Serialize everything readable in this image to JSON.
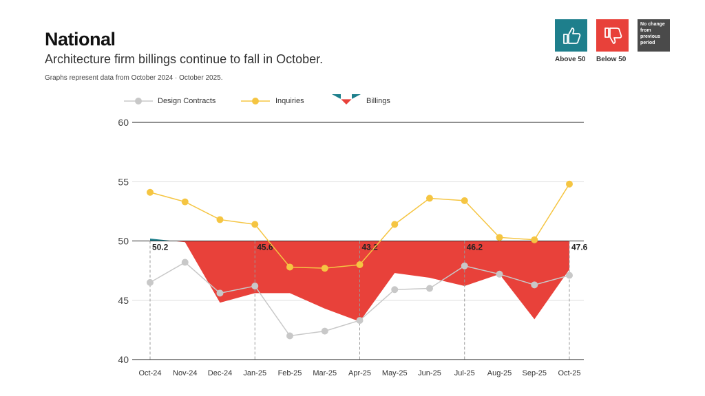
{
  "header": {
    "title": "National",
    "subtitle": "Architecture firm billings continue to fall in October.",
    "note": "Graphs represent data from October 2024 · October 2025."
  },
  "status_key": {
    "above": {
      "label": "Above 50",
      "color": "#1e7f8c",
      "icon": "thumbs-up-icon"
    },
    "below": {
      "label": "Below 50",
      "color": "#e8413a",
      "icon": "thumbs-down-icon"
    },
    "no_change": {
      "label": "No change from previous period",
      "color": "#4a4a4a"
    }
  },
  "legend": {
    "design_contracts": "Design Contracts",
    "inquiries": "Inquiries",
    "billings": "Billings"
  },
  "chart_data": {
    "type": "line",
    "title": "National",
    "categories": [
      "Oct-24",
      "Nov-24",
      "Dec-24",
      "Jan-25",
      "Feb-25",
      "Mar-25",
      "Apr-25",
      "May-25",
      "Jun-25",
      "Jul-25",
      "Aug-25",
      "Sep-25",
      "Oct-25"
    ],
    "ylim": [
      40,
      60
    ],
    "yticks": [
      40,
      45,
      50,
      55,
      60
    ],
    "baseline": 50,
    "series": [
      {
        "name": "Design Contracts",
        "color": "#c8c8c8",
        "values": [
          46.5,
          48.2,
          45.6,
          46.2,
          42.0,
          42.4,
          43.3,
          45.9,
          46.0,
          47.9,
          47.2,
          46.3,
          47.1
        ]
      },
      {
        "name": "Inquiries",
        "color": "#f5c542",
        "values": [
          54.1,
          53.3,
          51.8,
          51.4,
          47.8,
          47.7,
          48.0,
          51.4,
          53.6,
          53.4,
          50.3,
          50.1,
          54.8
        ]
      },
      {
        "name": "Billings",
        "type": "area",
        "values": [
          50.2,
          49.9,
          44.8,
          45.6,
          45.6,
          44.3,
          43.2,
          47.3,
          46.9,
          46.2,
          47.2,
          43.4,
          47.6
        ]
      }
    ],
    "annotations": [
      {
        "index": 0,
        "label": "50.2"
      },
      {
        "index": 3,
        "label": "45.6"
      },
      {
        "index": 6,
        "label": "43.2"
      },
      {
        "index": 9,
        "label": "46.2"
      },
      {
        "index": 12,
        "label": "47.6"
      }
    ]
  }
}
